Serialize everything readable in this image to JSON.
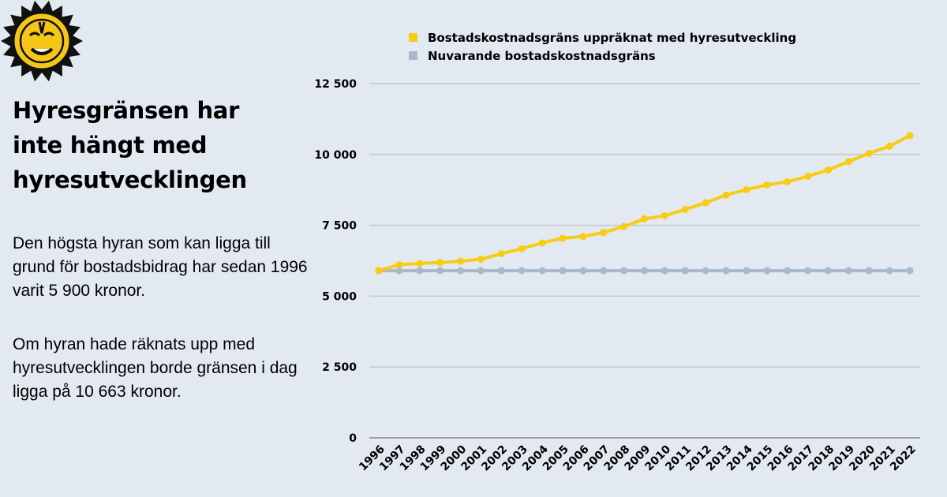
{
  "logo": {
    "name": "tiger-sun-logo"
  },
  "headline": "Hyresgränsen har inte hängt med hyresutvecklingen",
  "paragraphs": [
    "Den högsta hyran som kan ligga till grund för bostadsbidrag har sedan 1996 varit 5 900 kronor.",
    "Om hyran hade räknats upp med hyresutvecklingen borde gränsen i dag ligga på 10 663 kronor."
  ],
  "colors": {
    "background": "#e2e9f1",
    "yellow": "#f7cd14",
    "gray": "#a9b8ca",
    "grid": "#c3c8d0"
  },
  "chart_data": {
    "type": "line",
    "title": "",
    "xlabel": "",
    "ylabel": "",
    "ylim": [
      0,
      12500
    ],
    "yticks": [
      0,
      2500,
      5000,
      7500,
      10000,
      12500
    ],
    "ytick_labels": [
      "0",
      "2 500",
      "5 000",
      "7 500",
      "10 000",
      "12 500"
    ],
    "grid": true,
    "legend_position": "top",
    "x": [
      "1996",
      "1997",
      "1998",
      "1999",
      "2000",
      "2001",
      "2002",
      "2003",
      "2004",
      "2005",
      "2006",
      "2007",
      "2008",
      "2009",
      "2010",
      "2011",
      "2012",
      "2013",
      "2014",
      "2015",
      "2016",
      "2017",
      "2018",
      "2019",
      "2020",
      "2021",
      "2022"
    ],
    "series": [
      {
        "name": "Bostadskostnadsgräns uppräknat med hyresutveckling",
        "color": "#f7cd14",
        "values": [
          5900,
          6110,
          6157,
          6185,
          6232,
          6304,
          6498,
          6675,
          6877,
          7043,
          7107,
          7245,
          7458,
          7727,
          7838,
          8059,
          8297,
          8566,
          8759,
          8926,
          9036,
          9230,
          9452,
          9748,
          10041,
          10290,
          10663
        ]
      },
      {
        "name": "Nuvarande bostadskostnadsgräns",
        "color": "#a9b8ca",
        "values": [
          5900,
          5900,
          5900,
          5900,
          5900,
          5900,
          5900,
          5900,
          5900,
          5900,
          5900,
          5900,
          5900,
          5900,
          5900,
          5900,
          5900,
          5900,
          5900,
          5900,
          5900,
          5900,
          5900,
          5900,
          5900,
          5900,
          5900
        ]
      }
    ]
  }
}
